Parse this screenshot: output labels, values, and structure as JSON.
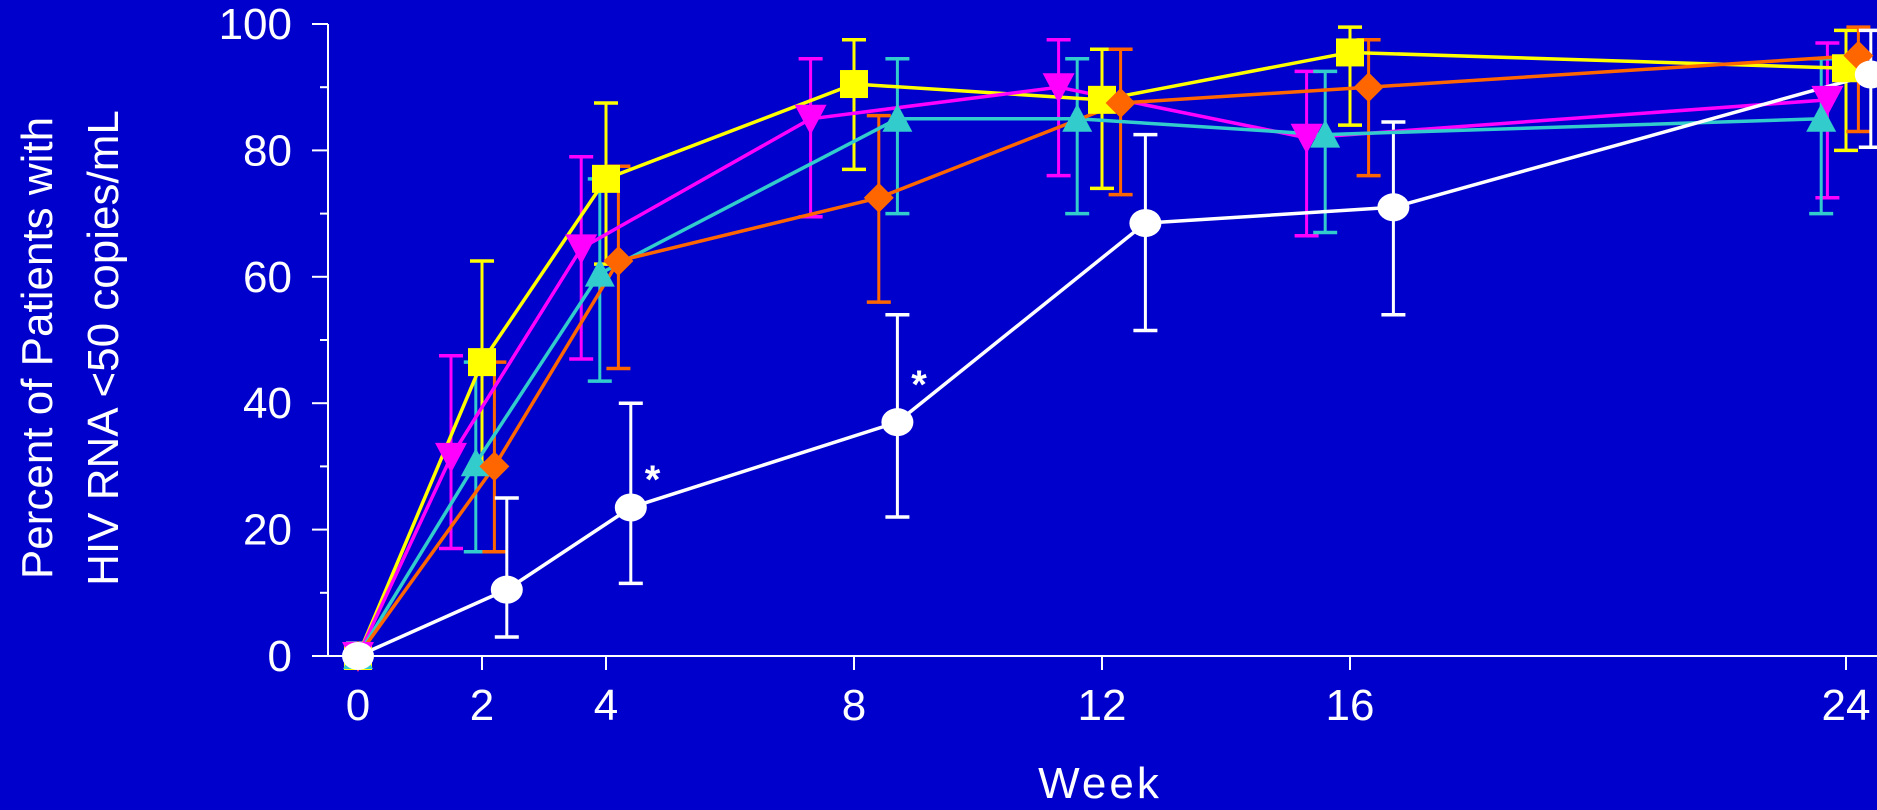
{
  "chart_data": {
    "type": "line",
    "title": "",
    "xlabel": "Week",
    "ylabel_lines": [
      "Percent of Patients with",
      "HIV RNA <50 copies/mL"
    ],
    "xlim": [
      0,
      24.5
    ],
    "ylim": [
      0,
      100
    ],
    "x_ticks": [
      0,
      2,
      4,
      8,
      12,
      16,
      24
    ],
    "y_ticks": [
      0,
      20,
      40,
      60,
      80,
      100
    ],
    "y_minor_ticks": [
      10,
      30,
      50,
      70,
      90
    ],
    "grid": false,
    "legend": "none",
    "background_color": "#0000CC",
    "axis_color": "#FFFFFF",
    "series": [
      {
        "color": "#FFFF00",
        "marker": "square-marker",
        "points": [
          {
            "x": 0,
            "y": 0,
            "lo": 0,
            "hi": 2
          },
          {
            "x": 2,
            "y": 46.5,
            "lo": 30.5,
            "hi": 62.5
          },
          {
            "x": 4,
            "y": 75.5,
            "lo": 62,
            "hi": 87.5
          },
          {
            "x": 8,
            "y": 90.5,
            "lo": 77,
            "hi": 97.5
          },
          {
            "x": 12,
            "y": 88,
            "lo": 74,
            "hi": 96
          },
          {
            "x": 16,
            "y": 95.5,
            "lo": 84,
            "hi": 99.5
          },
          {
            "x": 24,
            "y": 93,
            "lo": 80,
            "hi": 99
          }
        ]
      },
      {
        "color": "#FF00FF",
        "marker": "triangle-down-marker",
        "points": [
          {
            "x": 0,
            "y": 0,
            "lo": 0,
            "hi": 2
          },
          {
            "x": 1.5,
            "y": 31.5,
            "lo": 17,
            "hi": 47.5
          },
          {
            "x": 3.6,
            "y": 64.5,
            "lo": 47,
            "hi": 79
          },
          {
            "x": 7.3,
            "y": 85,
            "lo": 69.5,
            "hi": 94.5
          },
          {
            "x": 11.3,
            "y": 90,
            "lo": 76,
            "hi": 97.5
          },
          {
            "x": 15.3,
            "y": 82,
            "lo": 66.5,
            "hi": 92.5
          },
          {
            "x": 23.7,
            "y": 88,
            "lo": 72.5,
            "hi": 97
          }
        ]
      },
      {
        "color": "#33CCCC",
        "marker": "triangle-up-marker",
        "points": [
          {
            "x": 0,
            "y": 0,
            "lo": 0,
            "hi": 2
          },
          {
            "x": 1.9,
            "y": 30.5,
            "lo": 16.5,
            "hi": 46.5
          },
          {
            "x": 3.9,
            "y": 60.5,
            "lo": 43.5,
            "hi": 75.5
          },
          {
            "x": 8.7,
            "y": 85,
            "lo": 70,
            "hi": 94.5
          },
          {
            "x": 11.6,
            "y": 85,
            "lo": 70,
            "hi": 94.5
          },
          {
            "x": 15.6,
            "y": 82.5,
            "lo": 67,
            "hi": 92.5
          },
          {
            "x": 23.6,
            "y": 85,
            "lo": 70,
            "hi": 94.5
          }
        ]
      },
      {
        "color": "#FF6600",
        "marker": "diamond-marker",
        "points": [
          {
            "x": 0,
            "y": 0,
            "lo": 0,
            "hi": 2
          },
          {
            "x": 2.2,
            "y": 30,
            "lo": 16.5,
            "hi": 46.5
          },
          {
            "x": 4.2,
            "y": 62.5,
            "lo": 45.5,
            "hi": 77.5
          },
          {
            "x": 8.4,
            "y": 72.5,
            "lo": 56,
            "hi": 85.5
          },
          {
            "x": 12.3,
            "y": 87.5,
            "lo": 73,
            "hi": 96
          },
          {
            "x": 16.3,
            "y": 90,
            "lo": 76,
            "hi": 97.5
          },
          {
            "x": 24.2,
            "y": 95,
            "lo": 83,
            "hi": 99.5
          }
        ]
      },
      {
        "color": "#FFFFFF",
        "marker": "circle-marker",
        "points": [
          {
            "x": 0,
            "y": 0,
            "lo": 0,
            "hi": 2
          },
          {
            "x": 2.4,
            "y": 10.5,
            "lo": 3,
            "hi": 25
          },
          {
            "x": 4.4,
            "y": 23.5,
            "lo": 11.5,
            "hi": 40
          },
          {
            "x": 8.7,
            "y": 37,
            "lo": 22,
            "hi": 54
          },
          {
            "x": 12.7,
            "y": 68.5,
            "lo": 51.5,
            "hi": 82.5
          },
          {
            "x": 16.7,
            "y": 71,
            "lo": 54,
            "hi": 84.5
          },
          {
            "x": 24.4,
            "y": 92,
            "lo": 80.5,
            "hi": 99
          }
        ]
      }
    ],
    "annotations": [
      {
        "text": "*",
        "x": 4.75,
        "y": 28
      },
      {
        "text": "*",
        "x": 9.05,
        "y": 43
      }
    ]
  }
}
